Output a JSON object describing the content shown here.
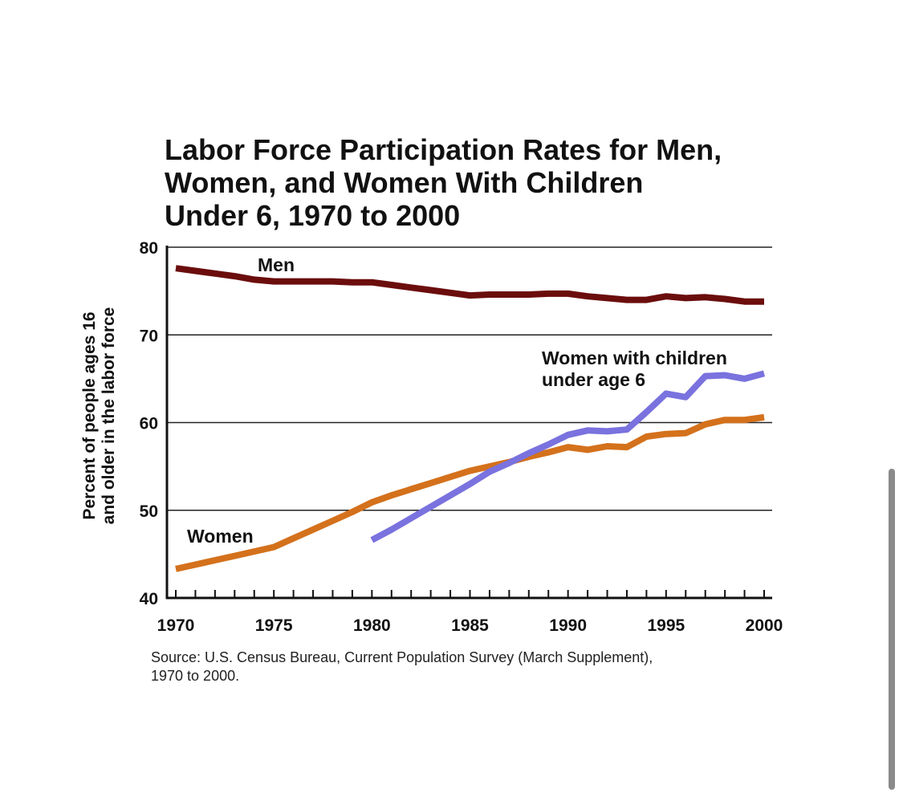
{
  "chart_data": {
    "type": "line",
    "title_lines": [
      "Labor Force Participation Rates for Men,",
      "Women, and Women With Children",
      "Under 6, 1970 to 2000"
    ],
    "ylabel_lines": [
      "Percent of people ages 16",
      "and older in the labor force"
    ],
    "xlabel": "",
    "xlim": [
      1970,
      2000
    ],
    "ylim": [
      40,
      80
    ],
    "x_ticks": [
      1970,
      1975,
      1980,
      1985,
      1990,
      1995,
      2000
    ],
    "y_ticks": [
      40,
      50,
      60,
      70,
      80
    ],
    "grid": true,
    "series": [
      {
        "name": "Men",
        "label": "Men",
        "color": "#6b0d0d",
        "x": [
          1970,
          1971,
          1972,
          1973,
          1974,
          1975,
          1976,
          1977,
          1978,
          1979,
          1980,
          1981,
          1982,
          1983,
          1984,
          1985,
          1986,
          1987,
          1988,
          1989,
          1990,
          1991,
          1992,
          1993,
          1994,
          1995,
          1996,
          1997,
          1998,
          1999,
          2000
        ],
        "values": [
          77.6,
          77.3,
          77.0,
          76.7,
          76.3,
          76.1,
          76.1,
          76.1,
          76.1,
          76.0,
          76.0,
          75.7,
          75.4,
          75.1,
          74.8,
          74.5,
          74.6,
          74.6,
          74.6,
          74.7,
          74.7,
          74.4,
          74.2,
          74.0,
          74.0,
          74.4,
          74.2,
          74.3,
          74.1,
          73.8,
          73.8
        ]
      },
      {
        "name": "Women",
        "label": "Women",
        "color": "#d4711c",
        "x": [
          1970,
          1971,
          1972,
          1973,
          1974,
          1975,
          1976,
          1977,
          1978,
          1979,
          1980,
          1981,
          1982,
          1983,
          1984,
          1985,
          1986,
          1987,
          1988,
          1989,
          1990,
          1991,
          1992,
          1993,
          1994,
          1995,
          1996,
          1997,
          1998,
          1999,
          2000
        ],
        "values": [
          43.3,
          43.8,
          44.3,
          44.8,
          45.3,
          45.8,
          46.8,
          47.8,
          48.8,
          49.8,
          50.9,
          51.7,
          52.4,
          53.1,
          53.8,
          54.5,
          55.0,
          55.5,
          56.1,
          56.6,
          57.2,
          56.9,
          57.3,
          57.2,
          58.4,
          58.7,
          58.8,
          59.8,
          60.3,
          60.3,
          60.6
        ]
      },
      {
        "name": "Women with children under age 6",
        "label_lines": [
          "Women with children",
          "under age 6"
        ],
        "color": "#7a72de",
        "x": [
          1980,
          1981,
          1982,
          1983,
          1984,
          1985,
          1986,
          1987,
          1988,
          1989,
          1990,
          1991,
          1992,
          1993,
          1994,
          1995,
          1996,
          1997,
          1998,
          1999,
          2000
        ],
        "values": [
          46.6,
          47.8,
          49.1,
          50.4,
          51.7,
          53.0,
          54.4,
          55.4,
          56.5,
          57.5,
          58.6,
          59.1,
          59.0,
          59.2,
          61.2,
          63.3,
          62.9,
          65.3,
          65.4,
          65.0,
          65.6
        ]
      }
    ],
    "source_lines": [
      "Source: U.S. Census Bureau, Current Population Survey (March Supplement),",
      "1970 to 2000."
    ]
  }
}
